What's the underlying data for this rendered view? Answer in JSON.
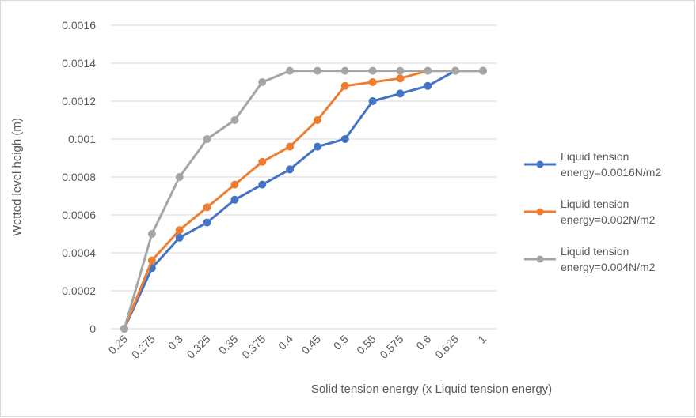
{
  "chart_data": {
    "type": "line",
    "x_label": "Solid tension energy (x Liquid tension energy)",
    "y_label": "Wetted level heigh (m)",
    "categories": [
      "0.25",
      "0.275",
      "0.3",
      "0.325",
      "0.35",
      "0.375",
      "0.4",
      "0.45",
      "0.5",
      "0.55",
      "0.575",
      "0.6",
      "0.625",
      "1"
    ],
    "series": [
      {
        "name": "Liquid tension energy=0.0016N/m2",
        "color": "#4472c4",
        "values": [
          0,
          0.00032,
          0.00048,
          0.00056,
          0.00068,
          0.00076,
          0.00084,
          0.00096,
          0.001,
          0.0012,
          0.00124,
          0.00128,
          0.00136,
          0.00136
        ]
      },
      {
        "name": "Liquid tension energy=0.002N/m2",
        "color": "#ed7d31",
        "values": [
          0,
          0.00036,
          0.00052,
          0.00064,
          0.00076,
          0.00088,
          0.00096,
          0.0011,
          0.00128,
          0.0013,
          0.00132,
          0.00136,
          0.00136,
          0.00136
        ]
      },
      {
        "name": "Liquid tension energy=0.004N/m2",
        "color": "#a5a5a5",
        "values": [
          0,
          0.0005,
          0.0008,
          0.001,
          0.0011,
          0.0013,
          0.00136,
          0.00136,
          0.00136,
          0.00136,
          0.00136,
          0.00136,
          0.00136,
          0.00136
        ]
      }
    ],
    "ylim": [
      0,
      0.0016
    ],
    "yticks": [
      0,
      0.0002,
      0.0004,
      0.0006,
      0.0008,
      0.001,
      0.0012,
      0.0014,
      0.0016
    ],
    "grid": true,
    "legend": "right"
  }
}
